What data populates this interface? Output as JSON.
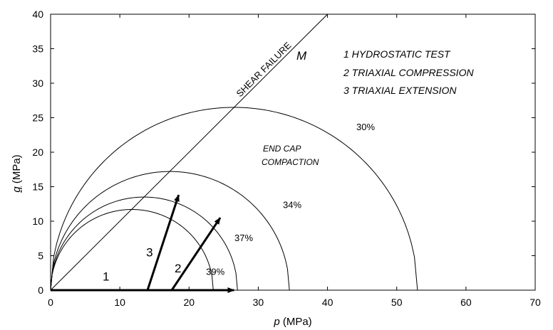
{
  "chart_data": {
    "type": "line",
    "xlabel": {
      "var": "p",
      "unit": " (MPa)"
    },
    "ylabel": {
      "var": "q",
      "unit": " (MPa)"
    },
    "xlim": [
      0,
      70
    ],
    "ylim": [
      0,
      40
    ],
    "xticks": [
      0,
      10,
      20,
      30,
      40,
      50,
      60,
      70
    ],
    "yticks": [
      0,
      5,
      10,
      15,
      20,
      25,
      30,
      35,
      40
    ],
    "grid": false,
    "shear_failure_line": {
      "label": "SHEAR FAILURE",
      "x": [
        0,
        40
      ],
      "y": [
        0,
        40
      ],
      "slope_label": "M"
    },
    "end_cap_curves": [
      {
        "label": "39%",
        "p_max": 23.5,
        "q_peak": 11.7,
        "p_at_peak": 11.3
      },
      {
        "label": "37%",
        "p_max": 27.0,
        "q_peak": 13.5,
        "p_at_peak": 12.8
      },
      {
        "label": "34%",
        "p_max": 34.5,
        "q_peak": 17.2,
        "p_at_peak": 17.0
      },
      {
        "label": "30%",
        "p_max": 53.0,
        "q_peak": 26.5,
        "p_at_peak": 26.5
      }
    ],
    "stress_paths": [
      {
        "label": "1",
        "from": [
          0,
          0
        ],
        "to": [
          26.5,
          0
        ]
      },
      {
        "label": "2",
        "from": [
          17.5,
          0
        ],
        "to": [
          24.5,
          10.5
        ]
      },
      {
        "label": "3",
        "from": [
          14.0,
          0
        ],
        "to": [
          18.5,
          13.8
        ]
      }
    ],
    "legend": [
      "1 HYDROSTATIC TEST",
      "2 TRIAXIAL COMPRESSION",
      "3 TRIAXIAL EXTENSION"
    ],
    "region_label": [
      "END CAP",
      "COMPACTION"
    ]
  }
}
